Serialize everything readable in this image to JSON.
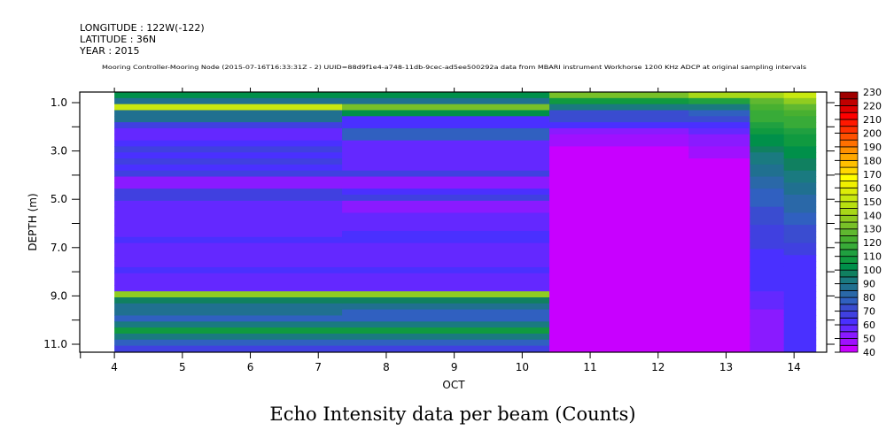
{
  "header": {
    "longitude": "LONGITUDE : 122W(-122)",
    "latitude": "LATITUDE : 36N",
    "year": "YEAR : 2015",
    "subtitle": "Mooring Controller-Mooring Node (2015-07-16T16:33:31Z - 2) UUID=88d9f1e4-a748-11db-9cec-ad5ee500292a data from MBARI instrument Workhorse 1200 KHz ADCP at original sampling intervals"
  },
  "chart_data": {
    "type": "heatmap",
    "title": "Echo Intensity data per beam (Counts)",
    "xlabel": "OCT",
    "ylabel": "DEPTH (m)",
    "xlim": [
      3.49,
      14.48
    ],
    "ylim": [
      11.33,
      0.56
    ],
    "x_ticks": [
      4,
      5,
      6,
      7,
      8,
      9,
      10,
      11,
      12,
      13,
      14
    ],
    "x_tick_labels": [
      "4",
      "5",
      "6",
      "7",
      "8",
      "9",
      "10",
      "11",
      "12",
      "13",
      "14"
    ],
    "y_ticks": [
      1,
      3,
      5,
      7,
      9,
      11
    ],
    "y_tick_labels": [
      "1.0",
      "3.0",
      "5.0",
      "7.0",
      "9.0",
      "11.0"
    ],
    "y_minor_ticks": [
      2,
      4,
      6,
      8,
      10
    ],
    "depth_bin_start": 0.56,
    "depth_bin_size": 0.25,
    "segments": [
      {
        "x0": 4.0,
        "x1": 7.35,
        "values": [
          100,
          88,
          152,
          85,
          85,
          65,
          57,
          57,
          62,
          65,
          62,
          68,
          62,
          68,
          52,
          52,
          65,
          65,
          57,
          57,
          57,
          57,
          57,
          57,
          62,
          57,
          57,
          57,
          57,
          62,
          57,
          57,
          57,
          137,
          95,
          88,
          88,
          76,
          90,
          105,
          92,
          75,
          68
        ]
      },
      {
        "x0": 7.35,
        "x1": 10.4,
        "values": [
          100,
          88,
          130,
          100,
          62,
          62,
          76,
          76,
          57,
          57,
          57,
          57,
          57,
          65,
          52,
          52,
          62,
          65,
          52,
          52,
          57,
          57,
          57,
          62,
          62,
          57,
          57,
          57,
          57,
          62,
          57,
          57,
          57,
          137,
          95,
          88,
          78,
          78,
          90,
          105,
          92,
          75,
          68
        ]
      },
      {
        "x0": 10.4,
        "x1": 12.45,
        "values": [
          130,
          108,
          92,
          70,
          70,
          62,
          52,
          47,
          47,
          42,
          42,
          42,
          42,
          42,
          42,
          42,
          42,
          42,
          42,
          42,
          42,
          42,
          42,
          42,
          42,
          42,
          42,
          42,
          42,
          42,
          42,
          42,
          42,
          42,
          42,
          42,
          42,
          42,
          42,
          42,
          42,
          42,
          42
        ]
      },
      {
        "x0": 12.45,
        "x1": 13.35,
        "values": [
          140,
          110,
          92,
          75,
          70,
          62,
          55,
          50,
          50,
          47,
          45,
          42,
          42,
          42,
          42,
          42,
          42,
          42,
          42,
          42,
          42,
          42,
          42,
          42,
          42,
          42,
          42,
          42,
          42,
          42,
          42,
          42,
          42,
          42,
          42,
          42,
          42,
          42,
          42,
          42,
          42,
          42,
          42
        ]
      },
      {
        "x0": 13.35,
        "x1": 13.85,
        "values": [
          140,
          125,
          120,
          118,
          115,
          110,
          105,
          100,
          100,
          95,
          92,
          90,
          88,
          85,
          82,
          80,
          78,
          76,
          75,
          73,
          72,
          70,
          68,
          67,
          66,
          65,
          64,
          63,
          62,
          61,
          60,
          60,
          60,
          58,
          56,
          55,
          54,
          53,
          52,
          52,
          51,
          51,
          50
        ]
      },
      {
        "x0": 13.85,
        "x1": 14.32,
        "values": [
          150,
          135,
          128,
          122,
          118,
          115,
          112,
          108,
          105,
          102,
          100,
          98,
          95,
          92,
          90,
          88,
          86,
          84,
          82,
          80,
          78,
          76,
          74,
          72,
          70,
          68,
          66,
          64,
          62,
          62,
          61,
          60,
          60,
          60,
          60,
          60,
          60,
          60,
          60,
          60,
          60,
          60,
          60
        ]
      }
    ],
    "colorbar": {
      "min": 40,
      "max": 230,
      "step": 5,
      "labels": [
        "230",
        "220",
        "210",
        "200",
        "190",
        "180",
        "170",
        "160",
        "150",
        "140",
        "130",
        "120",
        "110",
        "100",
        "90",
        "80",
        "70",
        "60",
        "50",
        "40"
      ],
      "colors": [
        "#c800ff",
        "#a010ff",
        "#8a1aff",
        "#6428ff",
        "#4a30ff",
        "#4040e0",
        "#3a4cd0",
        "#3060c0",
        "#2a68a8",
        "#207090",
        "#1a7a80",
        "#108060",
        "#00904a",
        "#109a40",
        "#20a040",
        "#38ab38",
        "#48b030",
        "#60b830",
        "#78c028",
        "#90cc20",
        "#a8d818",
        "#b8e010",
        "#c8e810",
        "#dcec08",
        "#f0f000",
        "#ffff00",
        "#ffd800",
        "#ffc000",
        "#ffa800",
        "#ff9000",
        "#ff7000",
        "#ff5000",
        "#ff3000",
        "#ff1800",
        "#ff0000",
        "#e00000",
        "#c00000",
        "#a00000"
      ]
    }
  }
}
